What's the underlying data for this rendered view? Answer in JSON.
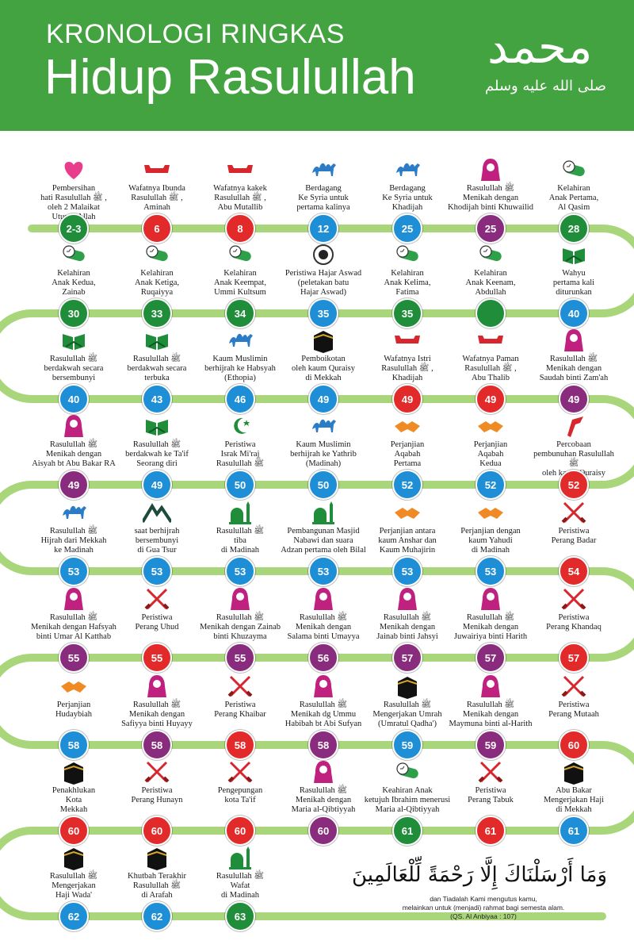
{
  "header": {
    "line1": "KRONOLOGI RINGKAS",
    "line2": "Hidup Rasulullah",
    "calligraphy": "محمد",
    "calligraphy_small": "صلى الله عليه وسلم"
  },
  "colors": {
    "blue": "#1e8fd6",
    "red": "#e32a2a",
    "green": "#1f8d3a",
    "purple": "#8a2c7e",
    "track": "#a9d67a",
    "header": "#43a340"
  },
  "rows": [
    [
      {
        "label": "Pembersihan\nhati Rasulullah ﷺ ,\noleh 2 Malaikat\nUtusan Allah",
        "age": "2-3",
        "color": "green",
        "icon": "heart-icon"
      },
      {
        "label": "Wafatnya Ibunda\nRasulullah ﷺ ,\nAminah",
        "age": "6",
        "color": "red",
        "icon": "coffin-icon"
      },
      {
        "label": "Wafatnya kakek\nRasulullah ﷺ ,\nAbu Mutallib",
        "age": "8",
        "color": "red",
        "icon": "coffin-icon"
      },
      {
        "label": "Berdagang\nKe Syria untuk\npertama kalinya",
        "age": "12",
        "color": "blue",
        "icon": "camel-icon"
      },
      {
        "label": "Berdagang\nKe Syria untuk\nKhadijah",
        "age": "25",
        "color": "blue",
        "icon": "camel-icon"
      },
      {
        "label": "Rasulullah ﷺ\nMenikah dengan\nKhodijah binti Khuwailid",
        "age": "25",
        "color": "purple",
        "icon": "bride-icon"
      },
      {
        "label": "Kelahiran\nAnak Pertama,\nAl Qasim",
        "age": "28",
        "color": "green",
        "icon": "cradle-icon"
      }
    ],
    [
      {
        "label": "Wahyu\npertama kali\nditurunkan",
        "age": "40",
        "color": "blue",
        "icon": "quran-icon"
      },
      {
        "label": "Kelahiran\nAnak Keenam,\nAbdullah",
        "age": "",
        "color": "green",
        "icon": "cradle-icon"
      },
      {
        "label": "Kelahiran\nAnak Kelima,\nFatima",
        "age": "35",
        "color": "green",
        "icon": "cradle-icon"
      },
      {
        "label": "Peristiwa Hajar Aswad\n(peletakan batu\nHajar Aswad)",
        "age": "35",
        "color": "blue",
        "icon": "black-stone-icon"
      },
      {
        "label": "Kelahiran\nAnak Keempat,\nUmmi Kultsum",
        "age": "34",
        "color": "green",
        "icon": "cradle-icon"
      },
      {
        "label": "Kelahiran\nAnak Ketiga,\nRuqaiyya",
        "age": "33",
        "color": "green",
        "icon": "cradle-icon"
      },
      {
        "label": "Kelahiran\nAnak Kedua,\nZainab",
        "age": "30",
        "color": "green",
        "icon": "cradle-icon"
      }
    ],
    [
      {
        "label": "Rasulullah ﷺ\nberdakwah secara\nbersembunyi",
        "age": "40",
        "color": "blue",
        "icon": "quran-icon"
      },
      {
        "label": "Rasulullah ﷺ\nberdakwah secara\nterbuka",
        "age": "43",
        "color": "blue",
        "icon": "quran-icon"
      },
      {
        "label": "Kaum Muslimin\nberhijrah ke Habsyah\n(Ethopia)",
        "age": "46",
        "color": "blue",
        "icon": "camel-icon"
      },
      {
        "label": "Pemboikotan\noleh kaum Quraisy\ndi Mekkah",
        "age": "49",
        "color": "blue",
        "icon": "kaaba-icon"
      },
      {
        "label": "Wafatnya Istri\nRasulullah ﷺ ,\nKhadijah",
        "age": "49",
        "color": "red",
        "icon": "coffin-icon"
      },
      {
        "label": "Wafatnya Paman\nRasulullah ﷺ ,\nAbu Thalib",
        "age": "49",
        "color": "red",
        "icon": "coffin-icon"
      },
      {
        "label": "Rasulullah ﷺ\nMenikah dengan\nSaudah binti Zam'ah",
        "age": "49",
        "color": "purple",
        "icon": "bride-icon"
      }
    ],
    [
      {
        "label": "Percobaan\npembunuhan Rasulullah ﷺ\noleh kaum Quraisy",
        "age": "52",
        "color": "red",
        "icon": "dagger-icon"
      },
      {
        "label": "Perjanjian\nAqabah\nKedua",
        "age": "52",
        "color": "blue",
        "icon": "handshake-icon"
      },
      {
        "label": "Perjanjian\nAqabah\nPertama",
        "age": "52",
        "color": "blue",
        "icon": "handshake-icon"
      },
      {
        "label": "Kaum Muslimin\nberhijrah ke Yathrib\n(Madinah)",
        "age": "50",
        "color": "blue",
        "icon": "camel-icon"
      },
      {
        "label": "Peristiwa\nIsrak Mi'raj\nRasulullah ﷺ",
        "age": "50",
        "color": "blue",
        "icon": "crescent-icon"
      },
      {
        "label": "Rasulullah ﷺ\nberdakwah ke Ta'if\nSeorang diri",
        "age": "49",
        "color": "blue",
        "icon": "quran-icon"
      },
      {
        "label": "Rasulullah ﷺ\nMenikah dengan\nAisyah bt Abu Bakar RA",
        "age": "49",
        "color": "purple",
        "icon": "bride-icon"
      }
    ],
    [
      {
        "label": "Rasulullah ﷺ\nHijrah dari Mekkah\nke Madinah",
        "age": "53",
        "color": "blue",
        "icon": "camel-icon"
      },
      {
        "label": "saat berhijrah\nbersembunyi\ndi Gua Tsur",
        "age": "53",
        "color": "blue",
        "icon": "mountain-icon"
      },
      {
        "label": "Rasulullah ﷺ\ntiba\ndi Madinah",
        "age": "53",
        "color": "blue",
        "icon": "mosque-icon"
      },
      {
        "label": "Pembangunan Masjid\nNabawi dan suara\nAdzan pertama oleh Bilal",
        "age": "53",
        "color": "blue",
        "icon": "mosque-icon"
      },
      {
        "label": "Perjanjian antara\nkaum Anshar dan\nKaum Muhajirin",
        "age": "53",
        "color": "blue",
        "icon": "handshake-icon"
      },
      {
        "label": "Perjanjian dengan\nkaum Yahudi\ndi Madinah",
        "age": "53",
        "color": "blue",
        "icon": "handshake-icon"
      },
      {
        "label": "Peristiwa\nPerang Badar",
        "age": "54",
        "color": "red",
        "icon": "swords-icon"
      }
    ],
    [
      {
        "label": "Peristiwa\nPerang Khandaq",
        "age": "57",
        "color": "red",
        "icon": "swords-icon"
      },
      {
        "label": "Rasulullah ﷺ\nMenikah dengan\nJuwairiya binti Harith",
        "age": "57",
        "color": "purple",
        "icon": "bride-icon"
      },
      {
        "label": "Rasulullah ﷺ\nMenikah dengan\nJainab binti Jahsyi",
        "age": "57",
        "color": "purple",
        "icon": "bride-icon"
      },
      {
        "label": "Rasulullah ﷺ\nMenikah dengan\nSalama binti Umayya",
        "age": "56",
        "color": "purple",
        "icon": "bride-icon"
      },
      {
        "label": "Rasulullah ﷺ\nMenikah dengan Zainab\nbinti Khuzayma",
        "age": "55",
        "color": "purple",
        "icon": "bride-icon"
      },
      {
        "label": "Peristiwa\nPerang Uhud",
        "age": "55",
        "color": "red",
        "icon": "swords-icon"
      },
      {
        "label": "Rasulullah ﷺ\nMenikah dengan Hafsyah\nbinti Umar Al Katthab",
        "age": "55",
        "color": "purple",
        "icon": "bride-icon"
      }
    ],
    [
      {
        "label": "Perjanjian\nHudaybiah",
        "age": "58",
        "color": "blue",
        "icon": "handshake-icon"
      },
      {
        "label": "Rasulullah ﷺ\nMenikah dengan\nSafiyya binti Huyayy",
        "age": "58",
        "color": "purple",
        "icon": "bride-icon"
      },
      {
        "label": "Peristiwa\nPerang Khaibar",
        "age": "58",
        "color": "red",
        "icon": "swords-icon"
      },
      {
        "label": "Rasulullah ﷺ\nMenikah dg Ummu\nHabibah bt Abi Sufyan",
        "age": "58",
        "color": "purple",
        "icon": "bride-icon"
      },
      {
        "label": "Rasulullah ﷺ\nMengerjakan Umrah\n(Umratul Qadha')",
        "age": "59",
        "color": "blue",
        "icon": "kaaba-icon"
      },
      {
        "label": "Rasulullah ﷺ\nMenikah dengan\nMaymuna binti al-Harith",
        "age": "59",
        "color": "purple",
        "icon": "bride-icon"
      },
      {
        "label": "Peristiwa\nPerang Mutaah",
        "age": "60",
        "color": "red",
        "icon": "swords-icon"
      }
    ],
    [
      {
        "label": "Abu Bakar\nMengerjakan Haji\ndi Mekkah",
        "age": "61",
        "color": "blue",
        "icon": "kaaba-icon"
      },
      {
        "label": "Peristiwa\nPerang Tabuk",
        "age": "61",
        "color": "red",
        "icon": "swords-icon"
      },
      {
        "label": "Keahiran Anak\nketujuh Ibrahim menerusi\nMaria al-Qibtiyyah",
        "age": "61",
        "color": "green",
        "icon": "cradle-icon"
      },
      {
        "label": "Rasulullah ﷺ\nMenikah dengan\nMaria al-Qibtiyyah",
        "age": "60",
        "color": "purple",
        "icon": "bride-icon"
      },
      {
        "label": "Pengepungan\nkota Ta'if",
        "age": "60",
        "color": "red",
        "icon": "swords-icon"
      },
      {
        "label": "Peristiwa\nPerang Hunayn",
        "age": "60",
        "color": "red",
        "icon": "swords-icon"
      },
      {
        "label": "Penakhlukan\nKota\nMekkah",
        "age": "60",
        "color": "red",
        "icon": "kaaba-icon"
      }
    ],
    [
      {
        "label": "Rasulullah ﷺ\nMengerjakan\nHaji Wada'",
        "age": "62",
        "color": "blue",
        "icon": "kaaba-icon"
      },
      {
        "label": "Khutbah Terakhir\nRasulullah ﷺ\ndi Arafah",
        "age": "62",
        "color": "blue",
        "icon": "kaaba-icon"
      },
      {
        "label": "Rasulullah ﷺ\nWafat\ndi Madinah",
        "age": "63",
        "color": "green",
        "icon": "mosque-icon"
      }
    ]
  ],
  "verse": {
    "arabic": "وَمَا أَرْسَلْنَاكَ إِلَّا رَحْمَةً لِّلْعَالَمِينَ",
    "translation": "dan Tiadalah Kami mengutus kamu,\nmelainkan untuk (menjadi) rahmat bagi semesta alam.\n(QS. Al Anbiyaa : 107)"
  }
}
